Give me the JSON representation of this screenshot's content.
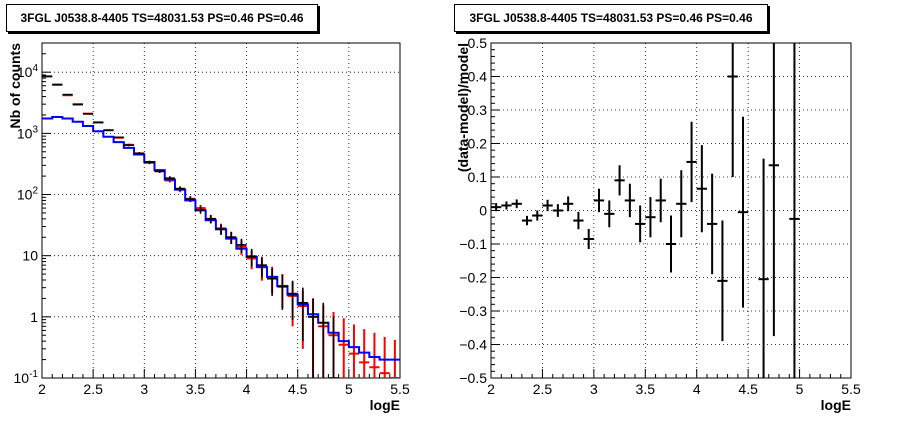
{
  "chart_data": [
    {
      "type": "line",
      "title": "3FGL J0538.8-4405 TS=48031.53 PS=0.46 PS=0.46",
      "xlabel": "logE",
      "ylabel": "Nb of counts",
      "ylog": true,
      "xlim": [
        2,
        5.5
      ],
      "ylim": [
        0.1,
        30000
      ],
      "x_ticks": [
        "2",
        "2.5",
        "3",
        "3.5",
        "4",
        "4.5",
        "5",
        "5.5"
      ],
      "y_ticks": [
        "1",
        "10",
        "10²",
        "10³",
        "10⁴"
      ],
      "y_tick_values": [
        1,
        10,
        100,
        1000,
        10000
      ],
      "y_tick_labels": [
        {
          "value": 0.1,
          "base": "10",
          "exp": "-1"
        },
        {
          "value": 1,
          "base": "1",
          "exp": ""
        },
        {
          "value": 10,
          "base": "10",
          "exp": ""
        },
        {
          "value": 100,
          "base": "10",
          "exp": "2"
        },
        {
          "value": 1000,
          "base": "10",
          "exp": "3"
        },
        {
          "value": 10000,
          "base": "10",
          "exp": "4"
        }
      ],
      "grid": true,
      "bin_edges": [
        2.0,
        2.1,
        2.2,
        2.3,
        2.4,
        2.5,
        2.6,
        2.7,
        2.8,
        2.9,
        3.0,
        3.1,
        3.2,
        3.3,
        3.4,
        3.5,
        3.6,
        3.7,
        3.8,
        3.9,
        4.0,
        4.1,
        4.2,
        4.3,
        4.4,
        4.5,
        4.6,
        4.7,
        4.8,
        4.9,
        5.0,
        5.1,
        5.2,
        5.3,
        5.4,
        5.5
      ],
      "series": [
        {
          "color": "#ff0000",
          "style": "bars_with_errors",
          "values": [
            8500,
            6200,
            4200,
            3000,
            2100,
            1500,
            1130,
            850,
            650,
            470,
            330,
            240,
            170,
            120,
            85,
            60,
            40,
            28,
            20,
            14,
            9,
            6.5,
            4.5,
            3.2,
            2.2,
            1.5,
            1.0,
            0.7,
            0.5,
            0.35,
            0.25,
            0.18,
            0.15,
            0.12,
            0.1
          ],
          "errors": [
            90,
            80,
            65,
            55,
            45,
            38,
            33,
            29,
            25,
            21,
            18,
            15,
            13,
            11,
            9,
            7.7,
            6.3,
            5.3,
            4.5,
            3.7,
            3.0,
            2.6,
            2.1,
            1.8,
            1.5,
            1.2,
            1.0,
            0.85,
            0.7,
            0.6,
            0.5,
            0.45,
            0.4,
            0.35,
            0.32
          ]
        },
        {
          "color": "#0000ff",
          "style": "step",
          "values": [
            1750,
            1850,
            1750,
            1550,
            1320,
            1080,
            880,
            720,
            580,
            450,
            340,
            250,
            175,
            120,
            80,
            55,
            38,
            27,
            19,
            13,
            9.5,
            6.5,
            4.5,
            3.2,
            2.3,
            1.6,
            1.1,
            0.8,
            0.55,
            0.4,
            0.32,
            0.26,
            0.22,
            0.2,
            0.2
          ]
        },
        {
          "color": "#000000",
          "style": "data_points",
          "x": [
            2.05,
            2.15,
            2.25,
            2.35,
            2.45,
            2.55,
            2.65,
            2.75,
            2.85,
            2.95,
            3.05,
            3.15,
            3.25,
            3.35,
            3.45,
            3.55,
            3.65,
            3.75,
            3.85,
            3.95,
            4.05,
            4.15,
            4.25,
            4.35,
            4.45,
            4.55,
            4.65,
            4.75,
            4.85
          ],
          "values": [
            8600,
            6300,
            4300,
            2950,
            2080,
            1520,
            1120,
            860,
            640,
            470,
            340,
            240,
            185,
            125,
            84,
            56,
            40,
            27,
            20,
            15,
            9.8,
            7,
            4.2,
            3.1,
            2.4,
            1.7,
            1.0,
            0.8,
            0.1
          ],
          "errors": [
            90,
            80,
            65,
            54,
            45,
            39,
            33,
            29,
            25,
            22,
            18,
            15,
            14,
            11,
            9,
            7.5,
            6.3,
            5.2,
            4.5,
            3.9,
            3.1,
            2.6,
            2.0,
            1.8,
            1.5,
            1.3,
            1.0,
            0.9,
            0.9
          ]
        }
      ]
    },
    {
      "type": "scatter",
      "title": "3FGL J0538.8-4405 TS=48031.53 PS=0.46 PS=0.46",
      "xlabel": "logE",
      "ylabel": "(data-model)/model",
      "xlim": [
        2,
        5.5
      ],
      "ylim": [
        -0.5,
        0.5
      ],
      "x_ticks": [
        "2",
        "2.5",
        "3",
        "3.5",
        "4",
        "4.5",
        "5",
        "5.5"
      ],
      "y_ticks": [
        "−0.5",
        "−0.4",
        "−0.3",
        "−0.2",
        "−0.1",
        "0",
        "0.1",
        "0.2",
        "0.3",
        "0.4",
        "0.5"
      ],
      "y_tick_values": [
        -0.5,
        -0.4,
        -0.3,
        -0.2,
        -0.1,
        0,
        0.1,
        0.2,
        0.3,
        0.4,
        0.5
      ],
      "grid": true,
      "series": [
        {
          "color": "#000000",
          "x": [
            2.05,
            2.15,
            2.25,
            2.35,
            2.45,
            2.55,
            2.65,
            2.75,
            2.85,
            2.95,
            3.05,
            3.15,
            3.25,
            3.35,
            3.45,
            3.55,
            3.65,
            3.75,
            3.85,
            3.95,
            4.05,
            4.15,
            4.25,
            4.35,
            4.45,
            4.65,
            4.75,
            4.95
          ],
          "values": [
            0.01,
            0.015,
            0.02,
            -0.03,
            -0.015,
            0.015,
            0.0,
            0.02,
            -0.03,
            -0.085,
            0.03,
            -0.01,
            0.09,
            0.03,
            -0.04,
            -0.02,
            0.03,
            -0.1,
            0.02,
            0.145,
            0.065,
            -0.04,
            -0.21,
            0.4,
            -0.005,
            -0.205,
            0.135,
            -0.025
          ],
          "errors": [
            0.012,
            0.012,
            0.013,
            0.014,
            0.015,
            0.017,
            0.019,
            0.022,
            0.026,
            0.03,
            0.035,
            0.04,
            0.045,
            0.05,
            0.055,
            0.06,
            0.065,
            0.085,
            0.1,
            0.12,
            0.13,
            0.15,
            0.18,
            0.3,
            0.285,
            0.36,
            0.51,
            0.6
          ]
        }
      ]
    }
  ]
}
